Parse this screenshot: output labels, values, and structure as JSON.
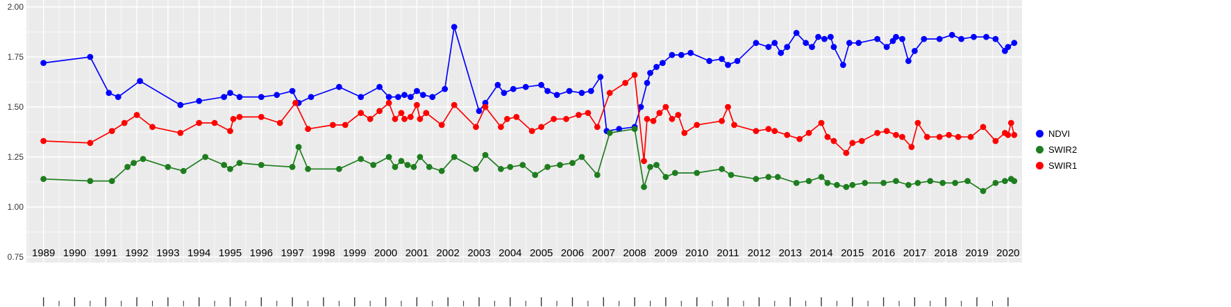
{
  "chart_data": {
    "type": "line",
    "title": "",
    "xlabel": "",
    "ylabel": "",
    "background": "#EBEBEB",
    "grid_color": "#FFFFFF",
    "grid": true,
    "legend_position": "right",
    "xlim": [
      1988.45,
      2020.45
    ],
    "ylim": [
      0.72,
      2.03
    ],
    "x_ticks": [
      1989,
      1990,
      1991,
      1992,
      1993,
      1994,
      1995,
      1996,
      1997,
      1998,
      1999,
      2000,
      2001,
      2002,
      2003,
      2004,
      2005,
      2006,
      2007,
      2008,
      2009,
      2010,
      2011,
      2012,
      2013,
      2014,
      2015,
      2016,
      2017,
      2018,
      2019,
      2020
    ],
    "x_tick_labels": [
      "1989",
      "1990",
      "1991",
      "1992",
      "1993",
      "1994",
      "1995",
      "1996",
      "1997",
      "1998",
      "1999",
      "2000",
      "2001",
      "2002",
      "2003",
      "2004",
      "2005",
      "2006",
      "2007",
      "2008",
      "2009",
      "2010",
      "2011",
      "2012",
      "2013",
      "2014",
      "2015",
      "2016",
      "2017",
      "2018",
      "2019",
      "2020"
    ],
    "y_ticks": [
      0.75,
      1.0,
      1.25,
      1.5,
      1.75,
      2.0
    ],
    "y_tick_labels": [
      "0.75",
      "1.00",
      "1.25",
      "1.50",
      "1.75",
      "2.00"
    ],
    "series": [
      {
        "name": "NDVI",
        "color": "#0000FF",
        "points": [
          [
            1989.0,
            1.72
          ],
          [
            1990.5,
            1.75
          ],
          [
            1991.1,
            1.57
          ],
          [
            1991.4,
            1.55
          ],
          [
            1992.1,
            1.63
          ],
          [
            1993.4,
            1.51
          ],
          [
            1994.0,
            1.53
          ],
          [
            1994.8,
            1.55
          ],
          [
            1995.0,
            1.57
          ],
          [
            1995.3,
            1.55
          ],
          [
            1996.0,
            1.55
          ],
          [
            1996.5,
            1.56
          ],
          [
            1997.0,
            1.58
          ],
          [
            1997.2,
            1.52
          ],
          [
            1997.6,
            1.55
          ],
          [
            1998.5,
            1.6
          ],
          [
            1999.2,
            1.55
          ],
          [
            1999.8,
            1.6
          ],
          [
            2000.1,
            1.55
          ],
          [
            2000.4,
            1.55
          ],
          [
            2000.6,
            1.56
          ],
          [
            2000.8,
            1.55
          ],
          [
            2001.0,
            1.58
          ],
          [
            2001.2,
            1.56
          ],
          [
            2001.5,
            1.55
          ],
          [
            2001.9,
            1.59
          ],
          [
            2002.2,
            1.9
          ],
          [
            2003.0,
            1.48
          ],
          [
            2003.2,
            1.52
          ],
          [
            2003.6,
            1.61
          ],
          [
            2003.8,
            1.57
          ],
          [
            2004.1,
            1.59
          ],
          [
            2004.5,
            1.6
          ],
          [
            2005.0,
            1.61
          ],
          [
            2005.2,
            1.58
          ],
          [
            2005.5,
            1.56
          ],
          [
            2005.9,
            1.58
          ],
          [
            2006.3,
            1.57
          ],
          [
            2006.6,
            1.58
          ],
          [
            2006.9,
            1.65
          ],
          [
            2007.1,
            1.38
          ],
          [
            2007.5,
            1.39
          ],
          [
            2008.0,
            1.4
          ],
          [
            2008.2,
            1.5
          ],
          [
            2008.4,
            1.62
          ],
          [
            2008.5,
            1.67
          ],
          [
            2008.7,
            1.7
          ],
          [
            2008.9,
            1.72
          ],
          [
            2009.2,
            1.76
          ],
          [
            2009.5,
            1.76
          ],
          [
            2009.8,
            1.77
          ],
          [
            2010.4,
            1.73
          ],
          [
            2010.8,
            1.74
          ],
          [
            2011.0,
            1.71
          ],
          [
            2011.3,
            1.73
          ],
          [
            2011.9,
            1.82
          ],
          [
            2012.3,
            1.8
          ],
          [
            2012.5,
            1.82
          ],
          [
            2012.7,
            1.77
          ],
          [
            2012.9,
            1.8
          ],
          [
            2013.2,
            1.87
          ],
          [
            2013.5,
            1.82
          ],
          [
            2013.7,
            1.8
          ],
          [
            2013.9,
            1.85
          ],
          [
            2014.1,
            1.84
          ],
          [
            2014.3,
            1.85
          ],
          [
            2014.4,
            1.8
          ],
          [
            2014.7,
            1.71
          ],
          [
            2014.9,
            1.82
          ],
          [
            2015.2,
            1.82
          ],
          [
            2015.8,
            1.84
          ],
          [
            2016.1,
            1.8
          ],
          [
            2016.3,
            1.83
          ],
          [
            2016.4,
            1.85
          ],
          [
            2016.6,
            1.84
          ],
          [
            2016.8,
            1.73
          ],
          [
            2017.0,
            1.78
          ],
          [
            2017.3,
            1.84
          ],
          [
            2017.8,
            1.84
          ],
          [
            2018.2,
            1.86
          ],
          [
            2018.5,
            1.84
          ],
          [
            2018.9,
            1.85
          ],
          [
            2019.3,
            1.85
          ],
          [
            2019.6,
            1.84
          ],
          [
            2019.9,
            1.78
          ],
          [
            2020.0,
            1.8
          ],
          [
            2020.2,
            1.82
          ]
        ]
      },
      {
        "name": "SWIR2",
        "color": "#1E7D1E",
        "points": [
          [
            1989.0,
            1.14
          ],
          [
            1990.5,
            1.13
          ],
          [
            1991.2,
            1.13
          ],
          [
            1991.7,
            1.2
          ],
          [
            1991.9,
            1.22
          ],
          [
            1992.2,
            1.24
          ],
          [
            1993.0,
            1.2
          ],
          [
            1993.5,
            1.18
          ],
          [
            1994.2,
            1.25
          ],
          [
            1994.8,
            1.21
          ],
          [
            1995.0,
            1.19
          ],
          [
            1995.3,
            1.22
          ],
          [
            1996.0,
            1.21
          ],
          [
            1997.0,
            1.2
          ],
          [
            1997.2,
            1.3
          ],
          [
            1997.5,
            1.19
          ],
          [
            1998.5,
            1.19
          ],
          [
            1999.2,
            1.24
          ],
          [
            1999.6,
            1.21
          ],
          [
            2000.1,
            1.25
          ],
          [
            2000.3,
            1.2
          ],
          [
            2000.5,
            1.23
          ],
          [
            2000.7,
            1.21
          ],
          [
            2000.9,
            1.2
          ],
          [
            2001.1,
            1.25
          ],
          [
            2001.4,
            1.2
          ],
          [
            2001.8,
            1.18
          ],
          [
            2002.2,
            1.25
          ],
          [
            2002.9,
            1.19
          ],
          [
            2003.2,
            1.26
          ],
          [
            2003.7,
            1.19
          ],
          [
            2004.0,
            1.2
          ],
          [
            2004.4,
            1.21
          ],
          [
            2004.8,
            1.16
          ],
          [
            2005.2,
            1.2
          ],
          [
            2005.6,
            1.21
          ],
          [
            2006.0,
            1.22
          ],
          [
            2006.3,
            1.25
          ],
          [
            2006.8,
            1.16
          ],
          [
            2007.2,
            1.37
          ],
          [
            2008.0,
            1.39
          ],
          [
            2008.3,
            1.1
          ],
          [
            2008.5,
            1.2
          ],
          [
            2008.7,
            1.21
          ],
          [
            2009.0,
            1.15
          ],
          [
            2009.3,
            1.17
          ],
          [
            2010.0,
            1.17
          ],
          [
            2010.8,
            1.19
          ],
          [
            2011.1,
            1.16
          ],
          [
            2011.9,
            1.14
          ],
          [
            2012.3,
            1.15
          ],
          [
            2012.6,
            1.15
          ],
          [
            2013.2,
            1.12
          ],
          [
            2013.6,
            1.13
          ],
          [
            2014.0,
            1.15
          ],
          [
            2014.2,
            1.12
          ],
          [
            2014.5,
            1.11
          ],
          [
            2014.8,
            1.1
          ],
          [
            2015.0,
            1.11
          ],
          [
            2015.4,
            1.12
          ],
          [
            2016.0,
            1.12
          ],
          [
            2016.4,
            1.13
          ],
          [
            2016.8,
            1.11
          ],
          [
            2017.1,
            1.12
          ],
          [
            2017.5,
            1.13
          ],
          [
            2017.9,
            1.12
          ],
          [
            2018.3,
            1.12
          ],
          [
            2018.7,
            1.13
          ],
          [
            2019.2,
            1.08
          ],
          [
            2019.6,
            1.12
          ],
          [
            2019.9,
            1.13
          ],
          [
            2020.1,
            1.14
          ],
          [
            2020.2,
            1.13
          ]
        ]
      },
      {
        "name": "SWIR1",
        "color": "#FF0000",
        "points": [
          [
            1989.0,
            1.33
          ],
          [
            1990.5,
            1.32
          ],
          [
            1991.2,
            1.38
          ],
          [
            1991.6,
            1.42
          ],
          [
            1992.0,
            1.46
          ],
          [
            1992.5,
            1.4
          ],
          [
            1993.4,
            1.37
          ],
          [
            1994.0,
            1.42
          ],
          [
            1994.5,
            1.42
          ],
          [
            1995.0,
            1.38
          ],
          [
            1995.1,
            1.44
          ],
          [
            1995.3,
            1.45
          ],
          [
            1996.0,
            1.45
          ],
          [
            1996.6,
            1.42
          ],
          [
            1997.1,
            1.52
          ],
          [
            1997.5,
            1.39
          ],
          [
            1998.3,
            1.41
          ],
          [
            1998.7,
            1.41
          ],
          [
            1999.2,
            1.47
          ],
          [
            1999.5,
            1.44
          ],
          [
            1999.8,
            1.48
          ],
          [
            2000.1,
            1.52
          ],
          [
            2000.3,
            1.44
          ],
          [
            2000.5,
            1.47
          ],
          [
            2000.6,
            1.44
          ],
          [
            2000.8,
            1.45
          ],
          [
            2001.0,
            1.51
          ],
          [
            2001.1,
            1.44
          ],
          [
            2001.3,
            1.47
          ],
          [
            2001.8,
            1.41
          ],
          [
            2002.2,
            1.51
          ],
          [
            2002.9,
            1.4
          ],
          [
            2003.2,
            1.5
          ],
          [
            2003.7,
            1.4
          ],
          [
            2003.9,
            1.44
          ],
          [
            2004.2,
            1.45
          ],
          [
            2004.7,
            1.38
          ],
          [
            2005.0,
            1.4
          ],
          [
            2005.4,
            1.44
          ],
          [
            2005.8,
            1.44
          ],
          [
            2006.2,
            1.46
          ],
          [
            2006.5,
            1.47
          ],
          [
            2006.8,
            1.4
          ],
          [
            2007.2,
            1.57
          ],
          [
            2007.7,
            1.62
          ],
          [
            2008.0,
            1.66
          ],
          [
            2008.3,
            1.23
          ],
          [
            2008.4,
            1.44
          ],
          [
            2008.6,
            1.43
          ],
          [
            2008.8,
            1.47
          ],
          [
            2009.0,
            1.5
          ],
          [
            2009.2,
            1.44
          ],
          [
            2009.4,
            1.46
          ],
          [
            2009.6,
            1.37
          ],
          [
            2010.0,
            1.41
          ],
          [
            2010.8,
            1.43
          ],
          [
            2011.0,
            1.5
          ],
          [
            2011.2,
            1.41
          ],
          [
            2011.9,
            1.38
          ],
          [
            2012.3,
            1.39
          ],
          [
            2012.5,
            1.38
          ],
          [
            2012.9,
            1.36
          ],
          [
            2013.3,
            1.34
          ],
          [
            2013.6,
            1.37
          ],
          [
            2014.0,
            1.42
          ],
          [
            2014.2,
            1.35
          ],
          [
            2014.4,
            1.33
          ],
          [
            2014.8,
            1.27
          ],
          [
            2015.0,
            1.32
          ],
          [
            2015.3,
            1.33
          ],
          [
            2015.8,
            1.37
          ],
          [
            2016.1,
            1.38
          ],
          [
            2016.4,
            1.36
          ],
          [
            2016.6,
            1.35
          ],
          [
            2016.9,
            1.3
          ],
          [
            2017.1,
            1.42
          ],
          [
            2017.4,
            1.35
          ],
          [
            2017.8,
            1.35
          ],
          [
            2018.1,
            1.36
          ],
          [
            2018.4,
            1.35
          ],
          [
            2018.8,
            1.35
          ],
          [
            2019.2,
            1.4
          ],
          [
            2019.6,
            1.33
          ],
          [
            2019.9,
            1.37
          ],
          [
            2020.0,
            1.36
          ],
          [
            2020.1,
            1.42
          ],
          [
            2020.2,
            1.36
          ]
        ]
      }
    ]
  }
}
